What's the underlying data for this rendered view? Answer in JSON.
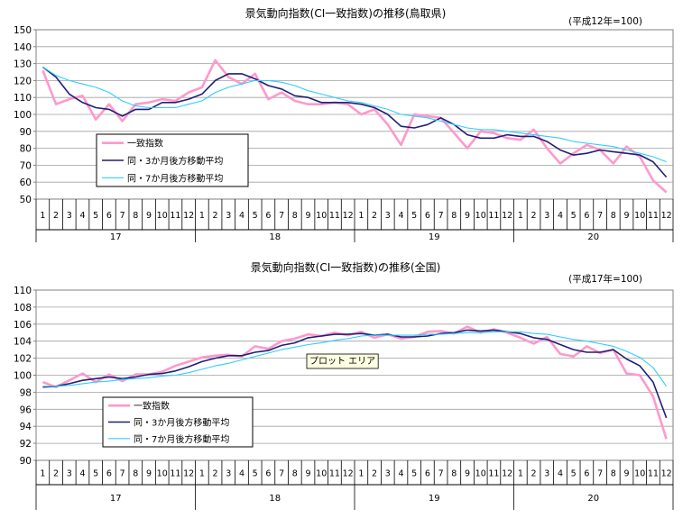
{
  "chart_data": [
    {
      "type": "line",
      "title": "景気動向指数(CI一致指数)の推移(鳥取県)",
      "note": "(平成12年=100)",
      "ylim": [
        50,
        150
      ],
      "yticks": [
        "50",
        "60",
        "70",
        "80",
        "90",
        "100",
        "110",
        "120",
        "130",
        "140",
        "150"
      ],
      "months": [
        "1",
        "2",
        "3",
        "4",
        "5",
        "6",
        "7",
        "8",
        "9",
        "10",
        "11",
        "12"
      ],
      "years": [
        "17",
        "18",
        "19",
        "20"
      ],
      "grid": "horizontal",
      "legend_position": "bottom-left",
      "series": [
        {
          "name": "一致指数",
          "color": "#ff99cc",
          "width": 2.6,
          "values": [
            126,
            106,
            109,
            111,
            97,
            106,
            96,
            106,
            107,
            109,
            108,
            113,
            116,
            132,
            122,
            118,
            124,
            109,
            113,
            108,
            106,
            106,
            107,
            106,
            100,
            103,
            94,
            82,
            100,
            99,
            98,
            89,
            80,
            90,
            89,
            86,
            85,
            91,
            80,
            71,
            77,
            82,
            79,
            71,
            81,
            75,
            61,
            54
          ]
        },
        {
          "name": "同・3か月後方移動平均",
          "color": "#1f1f78",
          "width": 1.6,
          "values": [
            128,
            122,
            112,
            107,
            104,
            103,
            99,
            103,
            103,
            107,
            107,
            109,
            112,
            120,
            124,
            124,
            121,
            117,
            115,
            111,
            110,
            107,
            107,
            107,
            106,
            104,
            100,
            93,
            92,
            94,
            98,
            94,
            88,
            86,
            86,
            88,
            87,
            87,
            84,
            79,
            76,
            77,
            79,
            78,
            77,
            76,
            72,
            63
          ]
        },
        {
          "name": "同・7か月後方移動平均",
          "color": "#33ccff",
          "width": 1.1,
          "values": [
            128,
            123,
            120,
            118,
            116,
            113,
            108,
            105,
            104,
            104,
            104,
            106,
            108,
            113,
            116,
            118,
            120,
            120,
            119,
            117,
            114,
            112,
            110,
            108,
            107,
            105,
            103,
            100,
            99,
            98,
            96,
            94,
            92,
            91,
            91,
            90,
            89,
            88,
            87,
            86,
            84,
            83,
            82,
            81,
            79,
            77,
            75,
            72
          ]
        }
      ]
    },
    {
      "type": "line",
      "title": "景気動向指数(CI一致指数)の推移(全国)",
      "note": "(平成17年=100)",
      "plot_area_label": "プロット エリア",
      "ylim": [
        90,
        110
      ],
      "yticks": [
        "90",
        "92",
        "94",
        "96",
        "98",
        "100",
        "102",
        "104",
        "106",
        "108",
        "110"
      ],
      "months": [
        "1",
        "2",
        "3",
        "4",
        "5",
        "6",
        "7",
        "8",
        "9",
        "10",
        "11",
        "12"
      ],
      "years": [
        "17",
        "18",
        "19",
        "20"
      ],
      "grid": "horizontal",
      "legend_position": "bottom-left",
      "series": [
        {
          "name": "一致指数",
          "color": "#ff99cc",
          "width": 2.6,
          "values": [
            99.2,
            98.6,
            99.4,
            100.2,
            99.2,
            100.1,
            99.3,
            100.1,
            100.1,
            100.4,
            101.1,
            101.6,
            102.1,
            102.3,
            102.4,
            102.2,
            103.4,
            103.1,
            104.0,
            104.3,
            104.8,
            104.6,
            105.0,
            104.7,
            105.1,
            104.4,
            104.8,
            104.3,
            104.5,
            105.1,
            105.2,
            104.9,
            105.7,
            105.0,
            105.4,
            105.0,
            104.4,
            103.7,
            104.5,
            102.5,
            102.2,
            103.4,
            102.6,
            103.0,
            100.2,
            100.0,
            97.5,
            92.5
          ]
        },
        {
          "name": "同・3か月後方移動平均",
          "color": "#1f1f78",
          "width": 1.6,
          "values": [
            98.6,
            98.7,
            99.0,
            99.4,
            99.6,
            99.8,
            99.6,
            99.8,
            100.1,
            100.2,
            100.5,
            101.0,
            101.6,
            102.0,
            102.3,
            102.3,
            102.7,
            102.9,
            103.5,
            103.8,
            104.4,
            104.6,
            104.8,
            104.8,
            104.9,
            104.7,
            104.8,
            104.5,
            104.5,
            104.6,
            104.9,
            105.0,
            105.3,
            105.2,
            105.3,
            105.1,
            104.9,
            104.4,
            104.2,
            103.6,
            103.0,
            102.7,
            102.7,
            103.0,
            101.9,
            101.1,
            99.2,
            95.0
          ]
        },
        {
          "name": "同・7か月後方移動平均",
          "color": "#33ccff",
          "width": 1.1,
          "values": [
            98.7,
            98.7,
            98.8,
            99.0,
            99.2,
            99.3,
            99.5,
            99.6,
            99.7,
            99.9,
            100.0,
            100.3,
            100.7,
            101.1,
            101.4,
            101.8,
            102.2,
            102.6,
            103.0,
            103.3,
            103.6,
            103.8,
            104.1,
            104.3,
            104.6,
            104.7,
            104.7,
            104.7,
            104.7,
            104.8,
            104.8,
            104.9,
            105.0,
            105.0,
            105.1,
            105.1,
            105.1,
            104.9,
            104.8,
            104.5,
            104.2,
            104.0,
            103.7,
            103.4,
            102.8,
            102.1,
            100.9,
            98.7
          ]
        }
      ]
    }
  ]
}
